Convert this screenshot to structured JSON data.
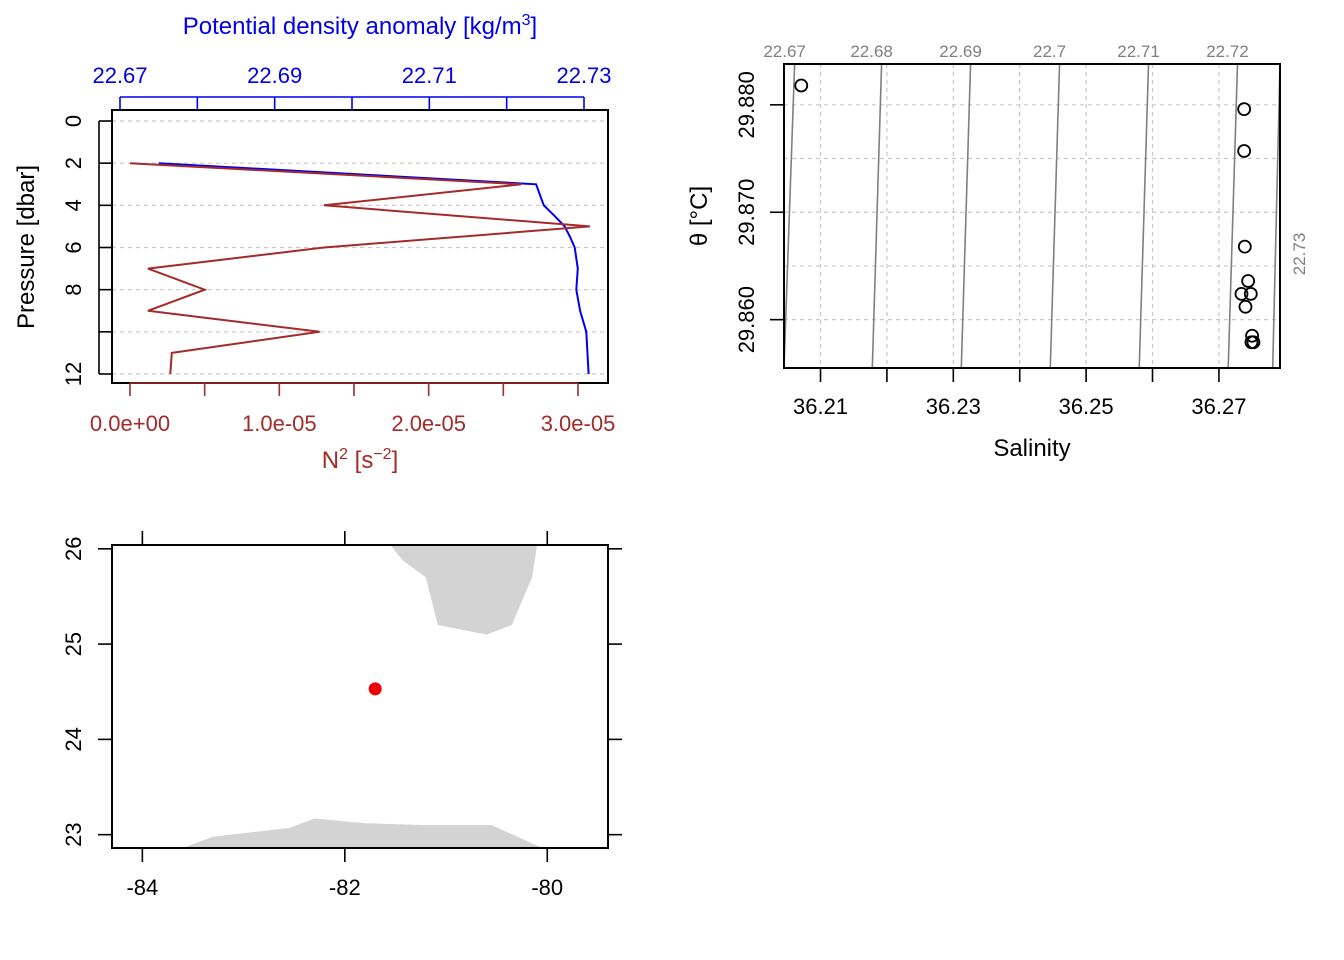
{
  "colors": {
    "density": "#0000ee",
    "n2": "#a52a2a",
    "land": "#d3d3d3",
    "station": "#ee0000",
    "isopycnal": "#7f7f7f"
  },
  "chart_data": [
    {
      "type": "line",
      "id": "profile",
      "ylabel": "Pressure [dbar]",
      "ylim": [
        12,
        0
      ],
      "yticks": [
        0,
        2,
        4,
        6,
        8,
        12
      ],
      "ygrid": [
        0,
        2,
        4,
        6,
        8,
        10,
        12
      ],
      "top_axis": {
        "label": "Potential density anomaly [kg/m³]",
        "label_main": "Potential density anomaly [kg/m",
        "label_sup": "3",
        "label_end": "]",
        "lim": [
          22.67,
          22.73
        ],
        "ticks": [
          "22.67",
          "22.69",
          "22.71",
          "22.73"
        ],
        "minor": [
          22.68,
          22.7,
          22.72
        ]
      },
      "bottom_axis": {
        "label": "N² [s⁻²]",
        "label_main": "N",
        "label_sup": "2",
        "label_mid": " [s",
        "label_sup2": "−2",
        "label_end": "]",
        "lim": [
          0,
          3e-05
        ],
        "ticks": [
          "0.0e+00",
          "1.0e-05",
          "2.0e-05",
          "3.0e-05"
        ],
        "values": [
          0,
          1e-05,
          2e-05,
          3e-05
        ],
        "minor": [
          5e-06,
          1.5e-05,
          2.5e-05
        ]
      },
      "series": [
        {
          "axis": "top",
          "points": [
            [
              22.675,
              2
            ],
            [
              22.7238,
              3
            ],
            [
              22.7243,
              3.5
            ],
            [
              22.7248,
              4
            ],
            [
              22.7262,
              4.5
            ],
            [
              22.7275,
              5
            ],
            [
              22.7282,
              5.5
            ],
            [
              22.7288,
              6
            ],
            [
              22.7292,
              7
            ],
            [
              22.729,
              8
            ],
            [
              22.7295,
              9
            ],
            [
              22.7303,
              10
            ],
            [
              22.7306,
              12
            ]
          ]
        },
        {
          "axis": "bottom",
          "points": [
            [
              0,
              2
            ],
            [
              2.62e-05,
              3
            ],
            [
              1.3e-05,
              4
            ],
            [
              3.08e-05,
              5
            ],
            [
              1.3e-05,
              6
            ],
            [
              1.2e-06,
              7
            ],
            [
              5e-06,
              8
            ],
            [
              1.2e-06,
              9
            ],
            [
              1.27e-05,
              10
            ],
            [
              2.8e-06,
              11
            ],
            [
              2.7e-06,
              12
            ]
          ]
        }
      ]
    },
    {
      "type": "scatter",
      "id": "ts",
      "xlabel": "Salinity",
      "ylabel": "θ [°C]",
      "xlim": [
        36.2045,
        36.2792
      ],
      "ylim": [
        29.8555,
        29.8838
      ],
      "xticks": [
        "36.21",
        "36.23",
        "36.25",
        "36.27"
      ],
      "xtick_values": [
        36.21,
        36.23,
        36.25,
        36.27
      ],
      "xminor": [
        36.22,
        36.24,
        36.26
      ],
      "yticks": [
        "29.860",
        "29.870",
        "29.880"
      ],
      "ytick_values": [
        29.86,
        29.87,
        29.88
      ],
      "xgrid": [
        36.21,
        36.22,
        36.23,
        36.24,
        36.25,
        36.26,
        36.27
      ],
      "ygrid": [
        29.86,
        29.865,
        29.87,
        29.875,
        29.88
      ],
      "isopycnals": [
        {
          "label": "22.67",
          "x0": 36.2045,
          "x1": 36.2061
        },
        {
          "label": "22.68",
          "x0": 36.2178,
          "x1": 36.2192
        },
        {
          "label": "22.69",
          "x0": 36.2312,
          "x1": 36.2326
        },
        {
          "label": "22.7",
          "x0": 36.2446,
          "x1": 36.246
        },
        {
          "label": "22.71",
          "x0": 36.258,
          "x1": 36.2594
        },
        {
          "label": "22.72",
          "x0": 36.2714,
          "x1": 36.2728
        },
        {
          "label": "22.73",
          "x0": 36.2781,
          "x1": 36.2792
        }
      ],
      "points": [
        [
          36.2071,
          29.8818
        ],
        [
          36.2738,
          29.8796
        ],
        [
          36.2738,
          29.8757
        ],
        [
          36.2739,
          29.8668
        ],
        [
          36.2744,
          29.8636
        ],
        [
          36.2734,
          29.8624
        ],
        [
          36.2748,
          29.8624
        ],
        [
          36.274,
          29.8612
        ],
        [
          36.275,
          29.8585
        ],
        [
          36.2749,
          29.8579
        ],
        [
          36.2752,
          29.8579
        ]
      ]
    },
    {
      "type": "map",
      "id": "map",
      "xlim": [
        -84.3,
        -79.4
      ],
      "ylim": [
        22.86,
        26.04
      ],
      "xticks": [
        "-84",
        "-82",
        "-80"
      ],
      "xtick_values": [
        -84,
        -82,
        -80
      ],
      "yticks": [
        "23",
        "24",
        "25",
        "26"
      ],
      "ytick_values": [
        23,
        24,
        25,
        26
      ],
      "land": [
        [
          [
            -81.55,
            26.04
          ],
          [
            -81.43,
            25.88
          ],
          [
            -81.2,
            25.7
          ],
          [
            -81.08,
            25.2
          ],
          [
            -80.6,
            25.1
          ],
          [
            -80.35,
            25.2
          ],
          [
            -80.15,
            25.7
          ],
          [
            -80.1,
            26.04
          ]
        ],
        [
          [
            -83.6,
            22.86
          ],
          [
            -83.3,
            22.98
          ],
          [
            -82.55,
            23.07
          ],
          [
            -82.3,
            23.17
          ],
          [
            -81.8,
            23.12
          ],
          [
            -81.2,
            23.1
          ],
          [
            -80.55,
            23.1
          ],
          [
            -80.05,
            22.86
          ]
        ]
      ],
      "station": [
        -81.7,
        24.53
      ]
    }
  ]
}
